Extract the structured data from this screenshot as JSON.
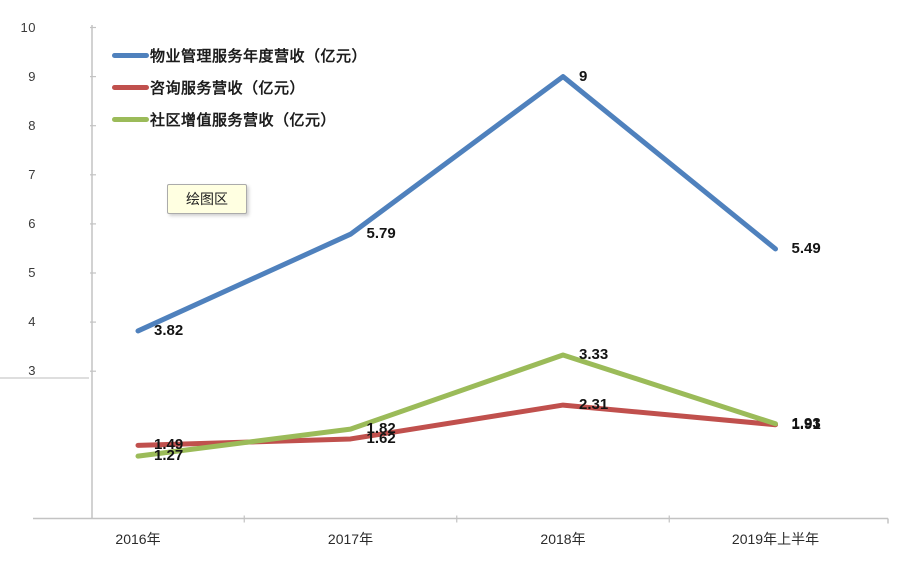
{
  "tooltip": {
    "label": "绘图区"
  },
  "colors": {
    "background": "#ffffff",
    "axis": "#c3c3c3",
    "artifact_line": "#d4d4d4",
    "tooltip_bg": "#ffffe1",
    "tooltip_border": "#ababab",
    "tick_label": "#3a3a3a",
    "data_label": "#141414"
  },
  "chart_data": {
    "type": "line",
    "title": "",
    "xlabel": "",
    "ylabel": "",
    "categories": [
      "2016年",
      "2017年",
      "2018年",
      "2019年上半年"
    ],
    "series": [
      {
        "name": "物业管理服务年度营收（亿元）",
        "color": "#4f81bd",
        "values": [
          3.82,
          5.79,
          9,
          5.49
        ],
        "labels": [
          "3.82",
          "5.79",
          "9",
          "5.49"
        ]
      },
      {
        "name": "咨询服务营收（亿元）",
        "color": "#c0504d",
        "values": [
          1.49,
          1.62,
          2.31,
          1.91
        ],
        "labels": [
          "1.49",
          "1.62",
          "2.31",
          "1.91"
        ]
      },
      {
        "name": "社区增值服务营收（亿元）",
        "color": "#9bbb59",
        "values": [
          1.27,
          1.82,
          3.33,
          1.93
        ],
        "labels": [
          "1.27",
          "1.82",
          "3.33",
          "1.93"
        ]
      }
    ],
    "ylim": [
      0,
      10
    ],
    "yticks": [
      10,
      9,
      8,
      7,
      6,
      5,
      4,
      3
    ],
    "grid": false,
    "legend_position": "top-left"
  }
}
